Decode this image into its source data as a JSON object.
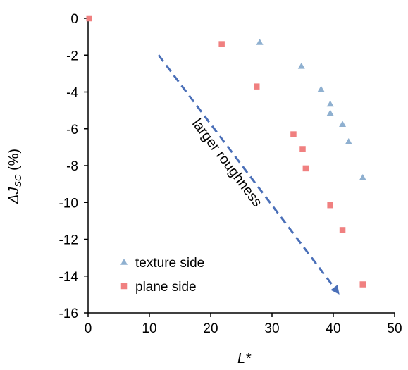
{
  "chart_data": {
    "type": "scatter",
    "title": "",
    "xlabel": "L*",
    "ylabel_main": "ΔJ",
    "ylabel_sub": "SC",
    "ylabel_unit": " (%)",
    "xlim": [
      0,
      50
    ],
    "ylim": [
      -16,
      0
    ],
    "xticks": [
      0,
      10,
      20,
      30,
      40,
      50
    ],
    "yticks": [
      0,
      -2,
      -4,
      -6,
      -8,
      -10,
      -12,
      -14,
      -16
    ],
    "grid": false,
    "legend_position": "bottom-left",
    "series": [
      {
        "name": "texture side",
        "marker": "triangle",
        "color": "#8FB0D0",
        "points": [
          [
            28.0,
            -1.3
          ],
          [
            34.8,
            -2.6
          ],
          [
            38.0,
            -3.85
          ],
          [
            39.5,
            -4.65
          ],
          [
            39.5,
            -5.15
          ],
          [
            41.5,
            -5.75
          ],
          [
            42.5,
            -6.7
          ],
          [
            44.8,
            -8.65
          ]
        ]
      },
      {
        "name": "plane side",
        "marker": "square",
        "color": "#F08080",
        "points": [
          [
            0.2,
            0.0
          ],
          [
            21.8,
            -1.4
          ],
          [
            27.5,
            -3.7
          ],
          [
            33.5,
            -6.3
          ],
          [
            35.0,
            -7.1
          ],
          [
            35.5,
            -8.15
          ],
          [
            39.5,
            -10.15
          ],
          [
            41.5,
            -11.5
          ],
          [
            44.8,
            -14.45
          ]
        ]
      }
    ],
    "annotation": {
      "text": "larger roughness",
      "color": "#4A6FB8",
      "arrow_from": [
        11.5,
        -2.0
      ],
      "arrow_to": [
        41.0,
        -15.0
      ]
    }
  }
}
